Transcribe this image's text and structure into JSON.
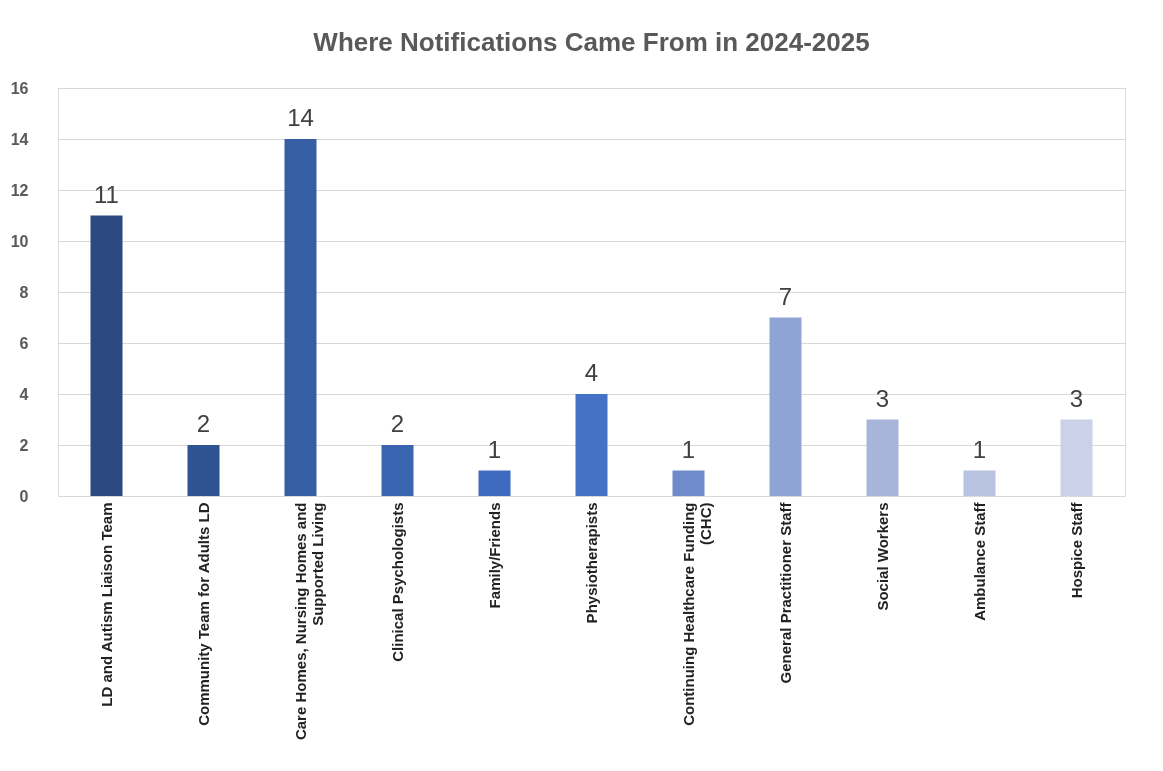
{
  "chart_data": {
    "type": "bar",
    "title": "Where Notifications Came From in 2024-2025",
    "categories": [
      "LD and Autism Liaison Team",
      "Community Team for Adults LD",
      "Care Homes, Nursing Homes and Supported Living",
      "Clinical Psychologists",
      "Family/Friends",
      "Physiotherapists",
      "Continuing Healthcare Funding (CHC)",
      "General Practitioner Staff",
      "Social Workers",
      "Ambulance Staff",
      "Hospice Staff"
    ],
    "values": [
      11,
      2,
      14,
      2,
      1,
      4,
      1,
      7,
      3,
      1,
      3
    ],
    "colors": [
      "#2a4a80",
      "#2f5290",
      "#365ea3",
      "#3b65b0",
      "#3e6bbf",
      "#4472c4",
      "#6f8bcc",
      "#8fa3d4",
      "#a7b5da",
      "#b8c3e2",
      "#cbd1e8"
    ],
    "ylim": [
      0,
      16
    ],
    "yticks": [
      0,
      2,
      4,
      6,
      8,
      10,
      12,
      14,
      16
    ],
    "grid": "y",
    "data_labels": true,
    "legend": false
  }
}
